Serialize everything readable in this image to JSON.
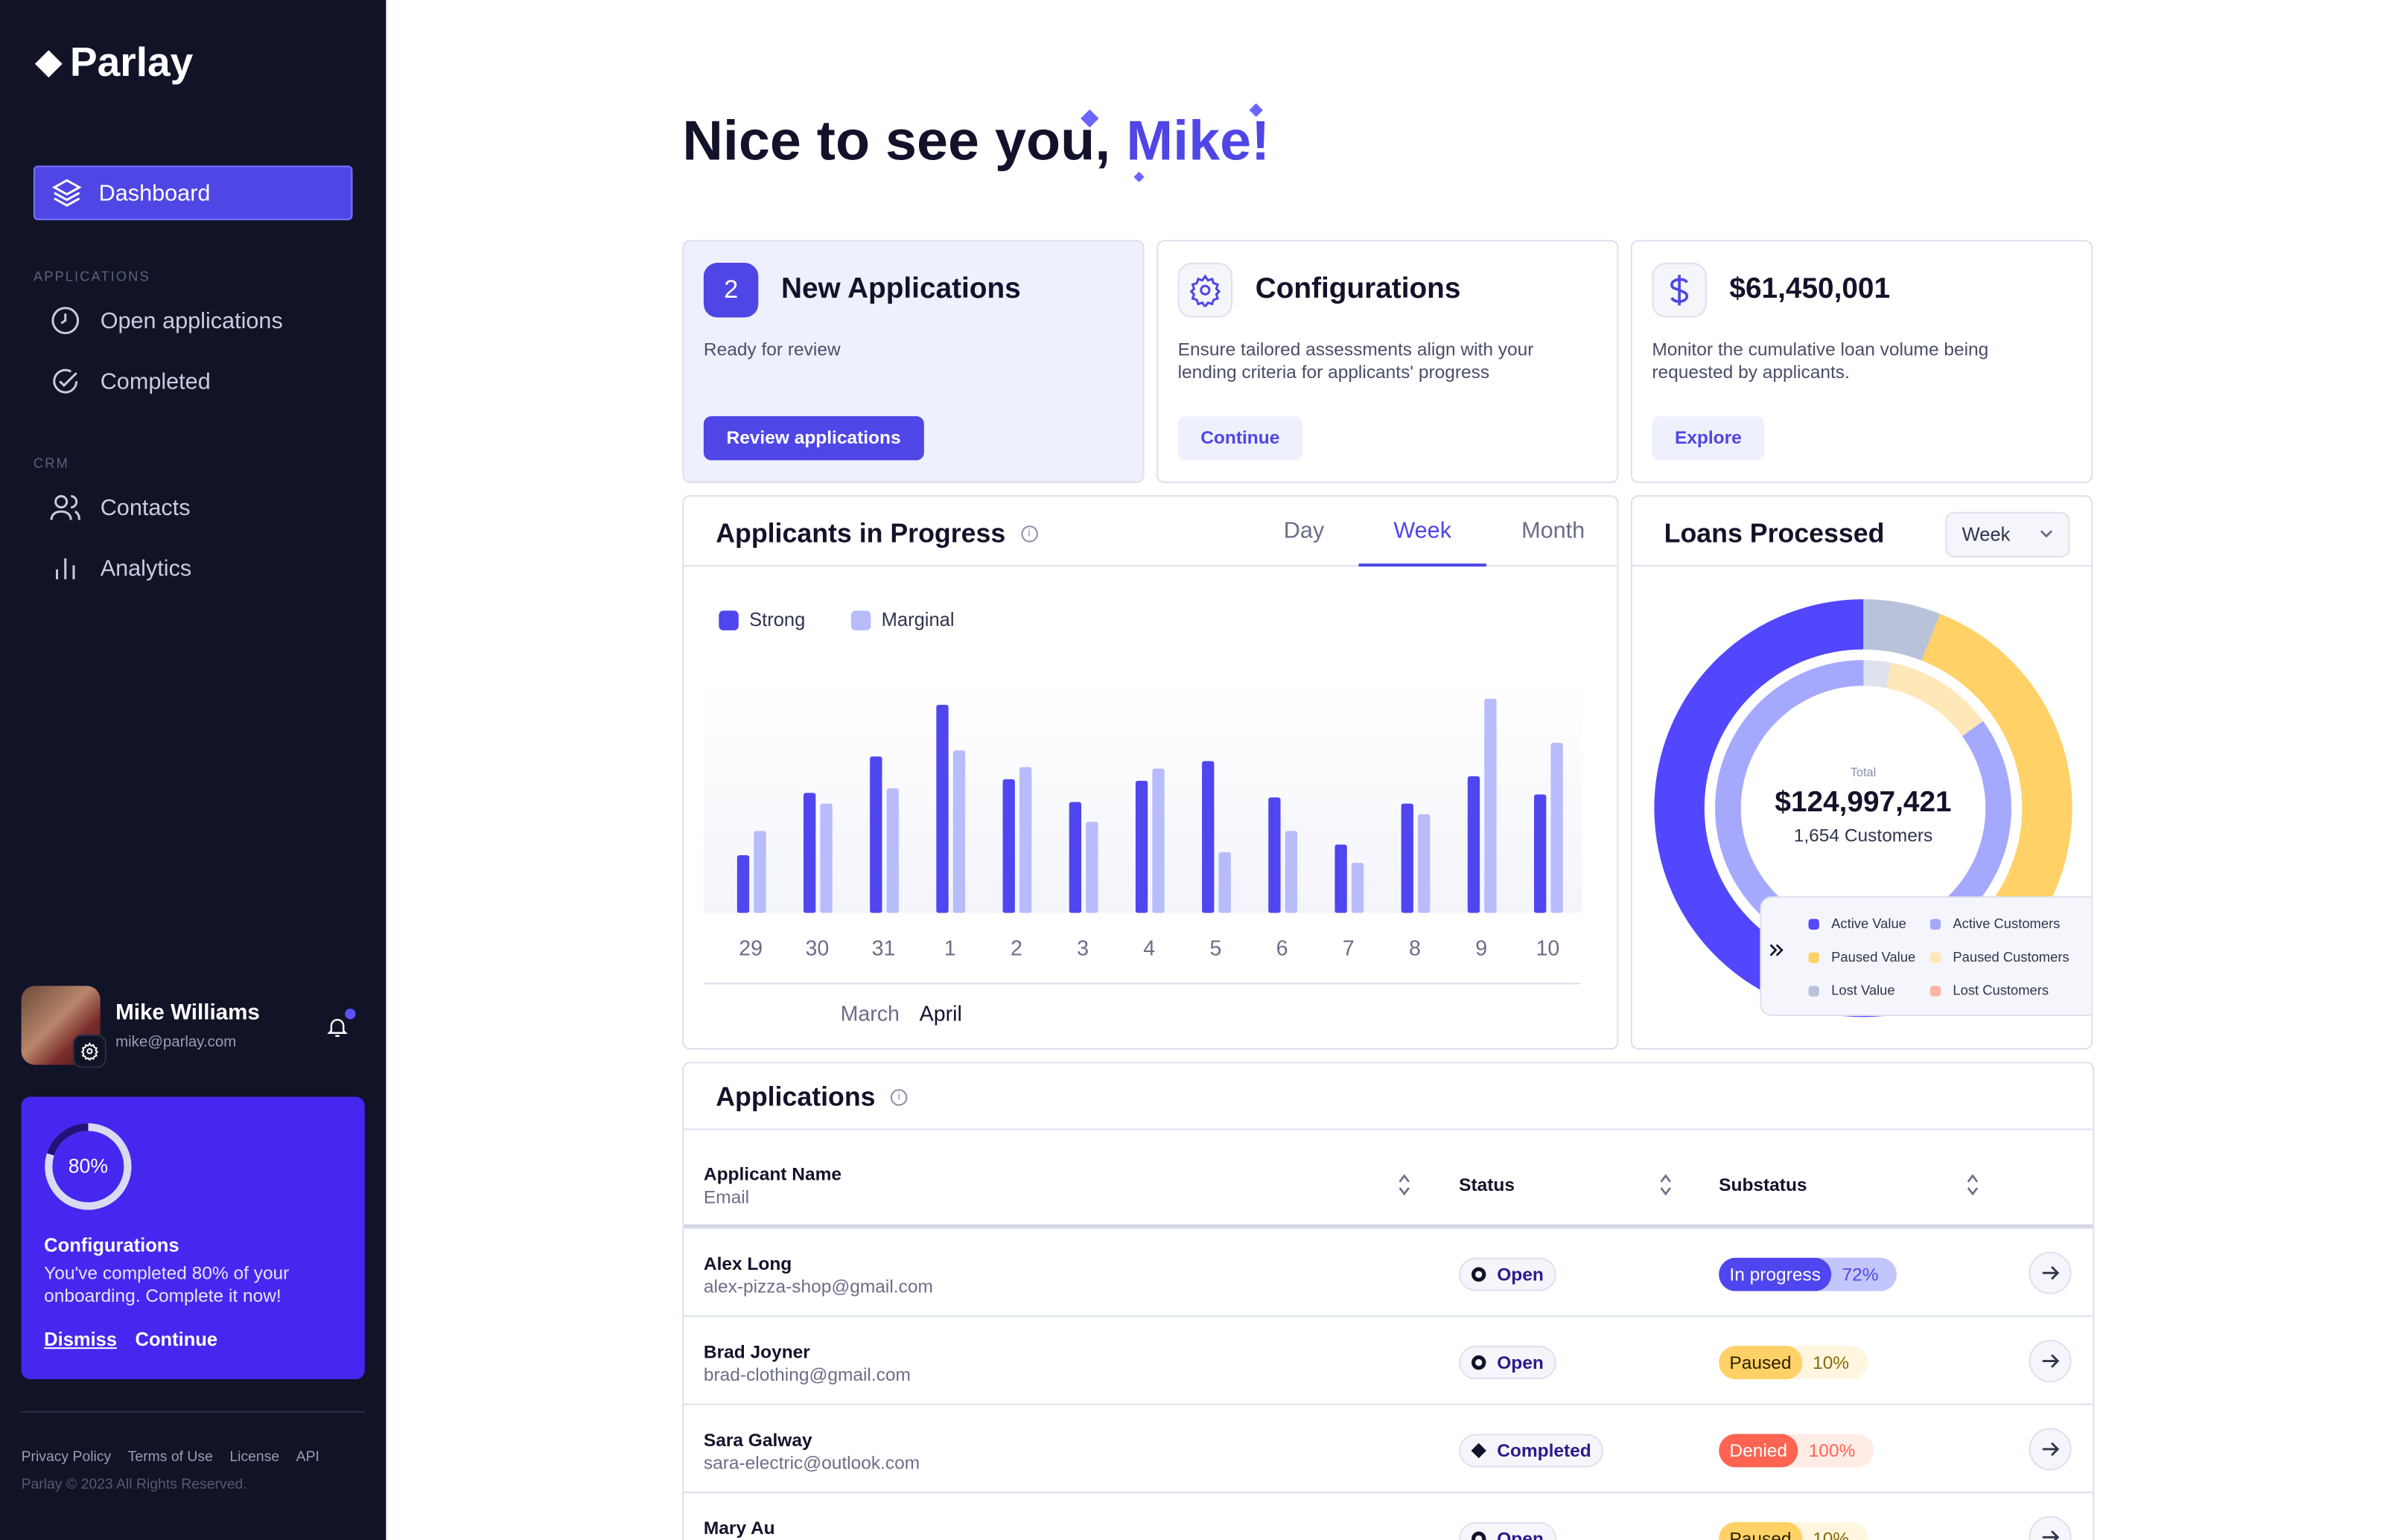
{
  "brand": "Parlay",
  "sidebar": {
    "dashboard": "Dashboard",
    "sections": {
      "applications": "APPLICATIONS",
      "crm": "CRM"
    },
    "items": [
      {
        "label": "Open applications",
        "icon": "clock-icon"
      },
      {
        "label": "Completed",
        "icon": "check-circle-icon"
      },
      {
        "label": "Contacts",
        "icon": "users-icon"
      },
      {
        "label": "Analytics",
        "icon": "bar-chart-icon"
      }
    ],
    "user": {
      "name": "Mike Williams",
      "email": "mike@parlay.com"
    },
    "onboarding": {
      "percent_label": "80%",
      "percent": 80,
      "title": "Configurations",
      "text": "You've completed 80% of your onboarding. Complete it now!",
      "dismiss": "Dismiss",
      "continue": "Continue"
    },
    "footer": {
      "links": [
        "Privacy Policy",
        "Terms of Use",
        "License",
        "API"
      ],
      "copyright": "Parlay © 2023 All Rights Reserved."
    }
  },
  "greeting": {
    "prefix": "Nice to see you,",
    "name": "Mike!"
  },
  "cards": [
    {
      "badge": "2",
      "title": "New Applications",
      "desc": "Ready for review",
      "button": "Review applications"
    },
    {
      "title": "Configurations",
      "desc": "Ensure tailored assessments align with your lending criteria for applicants' progress",
      "button": "Continue"
    },
    {
      "title": "$61,450,001",
      "desc": "Monitor the cumulative loan volume being requested by applicants.",
      "button": "Explore"
    }
  ],
  "progress": {
    "title": "Applicants in Progress",
    "tabs": [
      "Day",
      "Week",
      "Month"
    ],
    "active_tab": "Week",
    "months": [
      "March",
      "April"
    ]
  },
  "loans": {
    "title": "Loans Processed",
    "select": "Week",
    "total_label": "Total",
    "total": "$124,997,421",
    "customers": "1,654 Customers",
    "legend": [
      "Active Value",
      "Active Customers",
      "Paused Value",
      "Paused Customers",
      "Lost Value",
      "Lost Customers"
    ]
  },
  "chart_data": [
    {
      "type": "bar",
      "title": "Applicants in Progress",
      "categories": [
        "29",
        "30",
        "31",
        "1",
        "2",
        "3",
        "4",
        "5",
        "6",
        "7",
        "8",
        "9",
        "10"
      ],
      "series": [
        {
          "name": "Strong",
          "color": "#4f46f0",
          "values": [
            38,
            79,
            103,
            137,
            88,
            73,
            87,
            100,
            76,
            45,
            72,
            90,
            78
          ]
        },
        {
          "name": "Marginal",
          "color": "#b8bcfb",
          "values": [
            54,
            72,
            82,
            107,
            96,
            60,
            95,
            40,
            54,
            33,
            65,
            141,
            112
          ]
        }
      ],
      "ylim": [
        0,
        150
      ],
      "legend": "top-left"
    },
    {
      "type": "pie",
      "title": "Loans Processed",
      "rings": [
        {
          "name": "Value",
          "slices": [
            {
              "label": "Lost Value",
              "value": 6,
              "color": "#b8c2d8"
            },
            {
              "label": "Paused Value",
              "value": 38,
              "color": "#ffd166"
            },
            {
              "label": "Active Value",
              "value": 56,
              "color": "#5246ff"
            }
          ]
        },
        {
          "name": "Customers",
          "slices": [
            {
              "label": "Lost Customers",
              "value": 3,
              "color": "#dde2ee"
            },
            {
              "label": "Paused Customers",
              "value": 12,
              "color": "#ffe8b8"
            },
            {
              "label": "Active Customers",
              "value": 85,
              "color": "#a5a9fd"
            }
          ]
        }
      ]
    }
  ],
  "applications": {
    "title": "Applications",
    "headers": {
      "name": "Applicant Name",
      "email": "Email",
      "status": "Status",
      "substatus": "Substatus"
    },
    "rows": [
      {
        "name": "Alex Long",
        "email": "alex-pizza-shop@gmail.com",
        "status": "Open",
        "sub": "In progress",
        "pct": "72%",
        "kind": "progress"
      },
      {
        "name": "Brad Joyner",
        "email": "brad-clothing@gmail.com",
        "status": "Open",
        "sub": "Paused",
        "pct": "10%",
        "kind": "paused"
      },
      {
        "name": "Sara Galway",
        "email": "sara-electric@outlook.com",
        "status": "Completed",
        "sub": "Denied",
        "pct": "100%",
        "kind": "denied"
      },
      {
        "name": "Mary Au",
        "email": "",
        "status": "Open",
        "sub": "Paused",
        "pct": "10%",
        "kind": "paused"
      }
    ]
  }
}
